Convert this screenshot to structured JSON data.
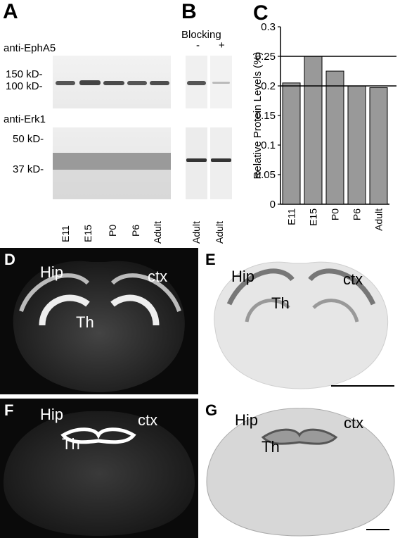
{
  "panels": {
    "A": "A",
    "B": "B",
    "C": "C",
    "D": "D",
    "E": "E",
    "F": "F",
    "G": "G"
  },
  "blot": {
    "antibody1": "anti-EphA5",
    "antibody2": "anti-Erk1",
    "markers_top": [
      "150 kD-",
      "100 kD-"
    ],
    "markers_bottom": [
      "50 kD-",
      "37 kD-"
    ],
    "lanes_A": [
      "E11",
      "E15",
      "P0",
      "P6",
      "Adult"
    ],
    "blocking_title": "Blocking",
    "blocking_signs": [
      "-",
      "+"
    ],
    "lanes_B": [
      "Adult",
      "Adult"
    ]
  },
  "chart_data": {
    "type": "bar",
    "categories": [
      "E11",
      "E15",
      "P0",
      "P6",
      "Adult"
    ],
    "values": [
      0.205,
      0.25,
      0.225,
      0.2,
      0.197
    ],
    "ylabel": "Relative Protein Levels (%)",
    "ylim": [
      0,
      0.3
    ],
    "yticks": [
      "0",
      "0.05",
      "0.1",
      "0.15",
      "0.2",
      "0.25",
      "0.3"
    ],
    "bar_color": "#999999",
    "reference_lines": [
      0.25,
      0.2
    ]
  },
  "brain": {
    "hip": "Hip",
    "ctx": "ctx",
    "th": "Th"
  }
}
